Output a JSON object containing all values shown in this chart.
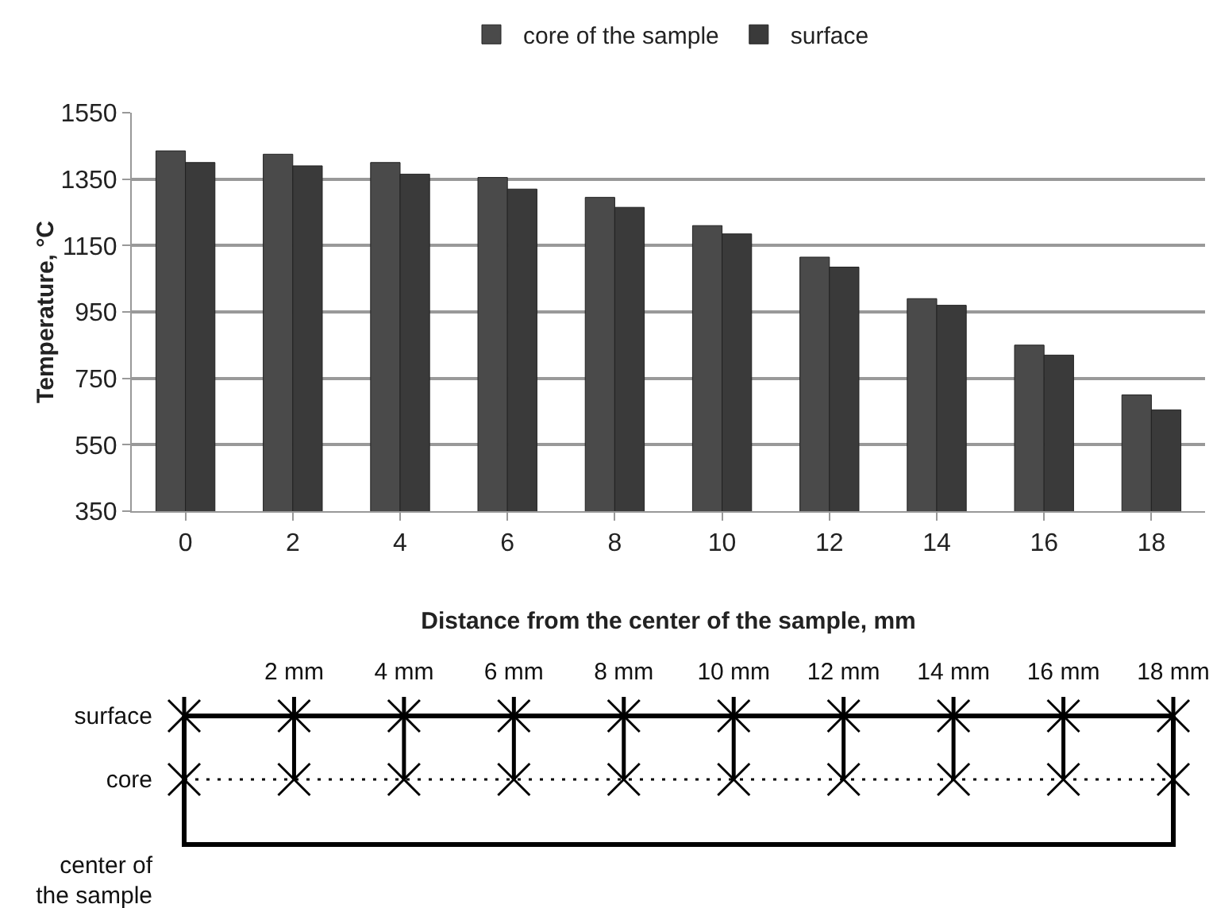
{
  "chart_data": {
    "type": "bar",
    "xlabel": "Distance from the center of the sample, mm",
    "ylabel": "Temperature, °C",
    "categories": [
      "0",
      "2",
      "4",
      "6",
      "8",
      "10",
      "12",
      "14",
      "16",
      "18"
    ],
    "series": [
      {
        "name": "core of the sample",
        "color": "#4a4a4a",
        "values": [
          1435,
          1425,
          1400,
          1355,
          1295,
          1210,
          1115,
          990,
          850,
          700
        ]
      },
      {
        "name": "surface",
        "color": "#3a3a3a",
        "values": [
          1400,
          1390,
          1365,
          1320,
          1265,
          1185,
          1085,
          970,
          820,
          655
        ]
      }
    ],
    "ylim": [
      350,
      1550
    ],
    "yticks": [
      350,
      550,
      750,
      950,
      1150,
      1350,
      1550
    ],
    "grid": "y",
    "legend": "top",
    "annotations": [
      "2 mm",
      "4 mm",
      "6 mm",
      "8 mm",
      "10 mm",
      "12 mm",
      "14 mm",
      "16 mm",
      "18 mm",
      "surface",
      "core",
      "center of the sample"
    ]
  }
}
